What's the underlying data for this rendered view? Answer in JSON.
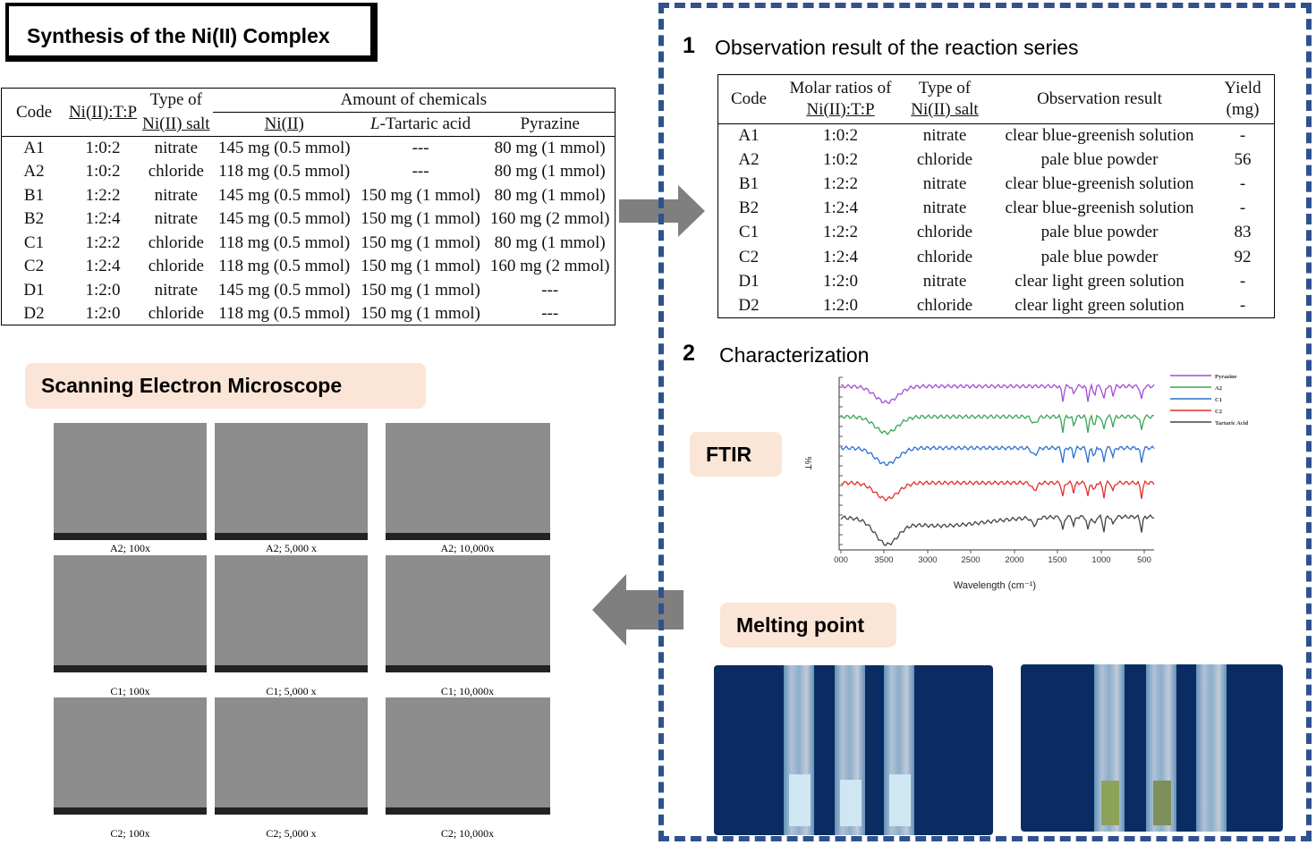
{
  "title": "Synthesis of the Ni(II) Complex",
  "synthesis_table": {
    "headers": {
      "code": "Code",
      "ratio": "Ni(II):T:P",
      "salt_line1": "Type of",
      "salt_line2": "Ni(II) salt",
      "amount": "Amount of chemicals",
      "ni": "Ni(II)",
      "tartaric_prefix": "L",
      "tartaric": "-Tartaric acid",
      "pyrazine": "Pyrazine"
    },
    "rows": [
      [
        "A1",
        "1:0:2",
        "nitrate",
        "145 mg (0.5 mmol)",
        "---",
        "80 mg (1 mmol)"
      ],
      [
        "A2",
        "1:0:2",
        "chloride",
        "118 mg (0.5 mmol)",
        "---",
        "80 mg (1 mmol)"
      ],
      [
        "B1",
        "1:2:2",
        "nitrate",
        "145 mg (0.5 mmol)",
        "150 mg (1 mmol)",
        "80 mg (1 mmol)"
      ],
      [
        "B2",
        "1:2:4",
        "nitrate",
        "145 mg (0.5 mmol)",
        "150 mg (1 mmol)",
        "160 mg (2 mmol)"
      ],
      [
        "C1",
        "1:2:2",
        "chloride",
        "118 mg (0.5 mmol)",
        "150 mg (1 mmol)",
        "80 mg (1 mmol)"
      ],
      [
        "C2",
        "1:2:4",
        "chloride",
        "118 mg (0.5 mmol)",
        "150 mg (1 mmol)",
        "160 mg (2 mmol)"
      ],
      [
        "D1",
        "1:2:0",
        "nitrate",
        "145 mg (0.5 mmol)",
        "150 mg (1 mmol)",
        "---"
      ],
      [
        "D2",
        "1:2:0",
        "chloride",
        "118 mg (0.5 mmol)",
        "150 mg (1 mmol)",
        "---"
      ]
    ]
  },
  "section1": {
    "number": "1",
    "title": "Observation result of the reaction series"
  },
  "observation_table": {
    "headers": {
      "code": "Code",
      "ratio_line1": "Molar ratios of",
      "ratio_line2": "Ni(II):T:P",
      "salt_line1": "Type of",
      "salt_line2": "Ni(II) salt",
      "result": "Observation result",
      "yield_line1": "Yield",
      "yield_line2": "(mg)"
    },
    "rows": [
      [
        "A1",
        "1:0:2",
        "nitrate",
        "clear blue-greenish solution",
        "-"
      ],
      [
        "A2",
        "1:0:2",
        "chloride",
        "pale blue powder",
        "56"
      ],
      [
        "B1",
        "1:2:2",
        "nitrate",
        "clear blue-greenish solution",
        "-"
      ],
      [
        "B2",
        "1:2:4",
        "nitrate",
        "clear blue-greenish solution",
        "-"
      ],
      [
        "C1",
        "1:2:2",
        "chloride",
        "pale blue powder",
        "83"
      ],
      [
        "C2",
        "1:2:4",
        "chloride",
        "pale blue powder",
        "92"
      ],
      [
        "D1",
        "1:2:0",
        "nitrate",
        "clear light green solution",
        "-"
      ],
      [
        "D2",
        "1:2:0",
        "chloride",
        "clear light green solution",
        "-"
      ]
    ]
  },
  "section2": {
    "number": "2",
    "title": "Characterization"
  },
  "labels": {
    "ftir": "FTIR",
    "melting_point": "Melting point",
    "sem": "Scanning Electron Microscope"
  },
  "chart_data": {
    "type": "line",
    "xlabel": "Wavelength (cm⁻¹)",
    "ylabel": "%T",
    "x_ticks": [
      "000",
      "3500",
      "3000",
      "2500",
      "2000",
      "1500",
      "1000",
      "500"
    ],
    "xlim": [
      4000,
      400
    ],
    "series": [
      {
        "name": "Pyrazine",
        "color": "#a64ad9"
      },
      {
        "name": "A2",
        "color": "#3aa655"
      },
      {
        "name": "C1",
        "color": "#2b6fd1"
      },
      {
        "name": "C2",
        "color": "#e0302b"
      },
      {
        "name": "Tartaric Acid",
        "color": "#444444"
      }
    ]
  },
  "sem_captions": [
    "A2; 100x",
    "A2; 5,000 x",
    "A2; 10,000x",
    "C1; 100x",
    "C1; 5,000 x",
    "C1; 10,000x",
    "C2; 100x",
    "C2; 5,000 x",
    "C2; 10,000x"
  ]
}
